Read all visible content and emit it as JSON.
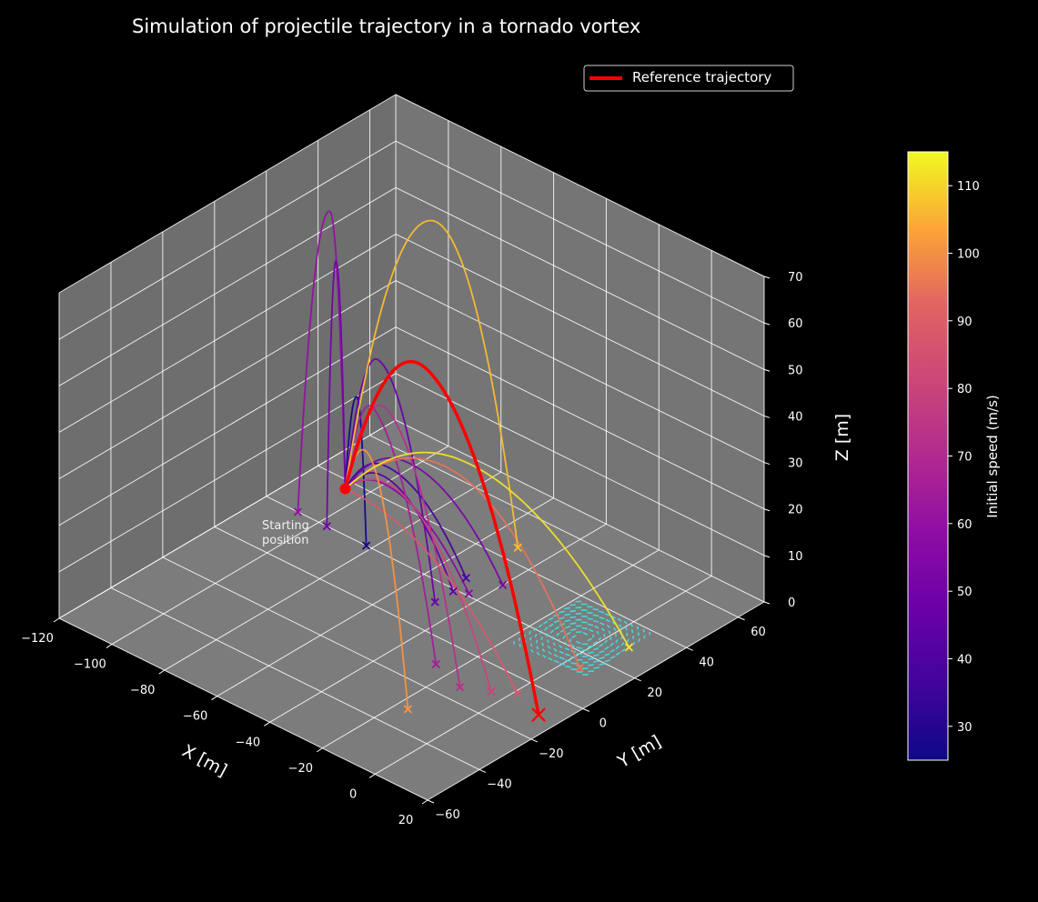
{
  "chart_data": {
    "type": "line",
    "title": "Simulation of projectile trajectory in a tornado vortex",
    "projection": "3d",
    "xlabel": "X [m]",
    "ylabel": "Y [m]",
    "zlabel": "Z [m]",
    "xlim": [
      -120,
      20
    ],
    "ylim": [
      -60,
      70
    ],
    "zlim": [
      0,
      70
    ],
    "x_ticks": [
      -120,
      -100,
      -80,
      -60,
      -40,
      -20,
      0,
      20
    ],
    "y_ticks": [
      -60,
      -40,
      -20,
      0,
      20,
      40,
      60
    ],
    "z_ticks": [
      0,
      10,
      20,
      30,
      40,
      50,
      60,
      70
    ],
    "x_tick_labels": [
      "−120",
      "−100",
      "−80",
      "−60",
      "−40",
      "−20",
      "0",
      "20"
    ],
    "y_tick_labels": [
      "−60",
      "−40",
      "−20",
      "0",
      "20",
      "40",
      "60"
    ],
    "z_tick_labels": [
      "0",
      "10",
      "20",
      "30",
      "40",
      "50",
      "60",
      "70"
    ],
    "grid": true,
    "pane_color": "#787878",
    "background": "#000000",
    "legend": {
      "placement": "top-right",
      "entries": [
        "Reference trajectory"
      ]
    },
    "start_position": {
      "x": -90,
      "y": 20,
      "z": 10,
      "label": "Starting\nposition",
      "label_lines": [
        "Starting",
        "position"
      ],
      "color": "#ff0000"
    },
    "colorbar": {
      "label": "Initial speed (m/s)",
      "range": [
        25,
        115
      ],
      "ticks": [
        30,
        40,
        50,
        60,
        70,
        80,
        90,
        100,
        110
      ],
      "colormap": "plasma"
    },
    "vortex": {
      "center": [
        -5,
        25
      ],
      "half_size": 13,
      "color": "#3ee0e6"
    },
    "reference": {
      "name": "Reference trajectory",
      "color": "#ff0000",
      "start": [
        -90,
        20,
        10
      ],
      "end": [
        13,
        -10,
        0
      ],
      "apex": 52,
      "apex_t": 0.42
    },
    "series": [
      {
        "speed": 26,
        "end": [
          -82,
          20,
          0
        ],
        "apex": 31,
        "apex_t": 0.55
      },
      {
        "speed": 60,
        "end": [
          -108,
          20,
          0
        ],
        "apex": 68,
        "apex_t": 0.32
      },
      {
        "speed": 50,
        "end": [
          -97,
          20,
          0
        ],
        "apex": 58,
        "apex_t": 0.5
      },
      {
        "speed": 38,
        "end": [
          -50,
          26,
          0
        ],
        "apex": 18,
        "apex_t": 0.3
      },
      {
        "speed": 44,
        "end": [
          -48,
          19,
          0
        ],
        "apex": 17,
        "apex_t": 0.35
      },
      {
        "speed": 48,
        "end": [
          -48,
          12,
          0
        ],
        "apex": 43,
        "apex_t": 0.37
      },
      {
        "speed": 52,
        "end": [
          -40,
          30,
          0
        ],
        "apex": 20,
        "apex_t": 0.35
      },
      {
        "speed": 56,
        "end": [
          -44,
          21,
          0
        ],
        "apex": 15,
        "apex_t": 0.3
      },
      {
        "speed": 65,
        "end": [
          -26,
          -10,
          0
        ],
        "apex": 36,
        "apex_t": 0.32
      },
      {
        "speed": 72,
        "end": [
          -13,
          -14,
          0
        ],
        "apex": 39,
        "apex_t": 0.38
      },
      {
        "speed": 80,
        "end": [
          -5,
          -10,
          0
        ],
        "apex": 22,
        "apex_t": 0.42
      },
      {
        "speed": 88,
        "end": [
          1,
          -6,
          0
        ],
        "apex": 13,
        "apex_t": 0.35
      },
      {
        "speed": 95,
        "end": [
          5,
          14,
          0
        ],
        "apex": 27,
        "apex_t": 0.45
      },
      {
        "speed": 101,
        "end": [
          -16,
          -31,
          0
        ],
        "apex": 32,
        "apex_t": 0.45
      },
      {
        "speed": 107,
        "end": [
          -50,
          46,
          0
        ],
        "apex": 69,
        "apex_t": 0.5
      },
      {
        "speed": 112,
        "end": [
          8,
          30,
          0
        ],
        "apex": 26,
        "apex_t": 0.4
      }
    ]
  }
}
